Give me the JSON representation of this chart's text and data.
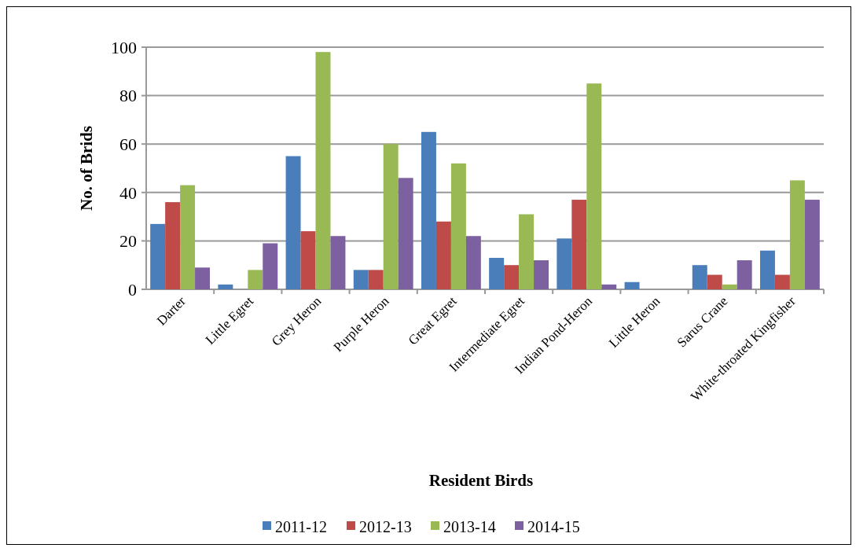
{
  "chart_data": {
    "type": "bar",
    "xlabel": "Resident Birds",
    "ylabel": "No. of Brids",
    "categories": [
      "Darter",
      "Little Egret",
      "Grey Heron",
      "Purple Heron",
      "Great Egret",
      "Intermediate Egret",
      "Indian Pond-Heron",
      "Little Heron",
      "Sarus Crane",
      "White-throated Kingfisher"
    ],
    "series": [
      {
        "name": "2011-12",
        "color": "#4a7ebb",
        "values": [
          27,
          2,
          55,
          8,
          65,
          13,
          21,
          3,
          10,
          16
        ]
      },
      {
        "name": "2012-13",
        "color": "#be4b48",
        "values": [
          36,
          0,
          24,
          8,
          28,
          10,
          37,
          0,
          6,
          6
        ]
      },
      {
        "name": "2013-14",
        "color": "#98b954",
        "values": [
          43,
          8,
          98,
          60,
          52,
          31,
          85,
          0,
          2,
          45
        ]
      },
      {
        "name": "2014-15",
        "color": "#7d60a0",
        "values": [
          9,
          19,
          22,
          46,
          22,
          12,
          2,
          0,
          12,
          37
        ]
      }
    ],
    "ylim": [
      0,
      100
    ],
    "yticks": [
      0,
      20,
      40,
      60,
      80,
      100
    ],
    "grid": "y",
    "legend": "bottom"
  }
}
